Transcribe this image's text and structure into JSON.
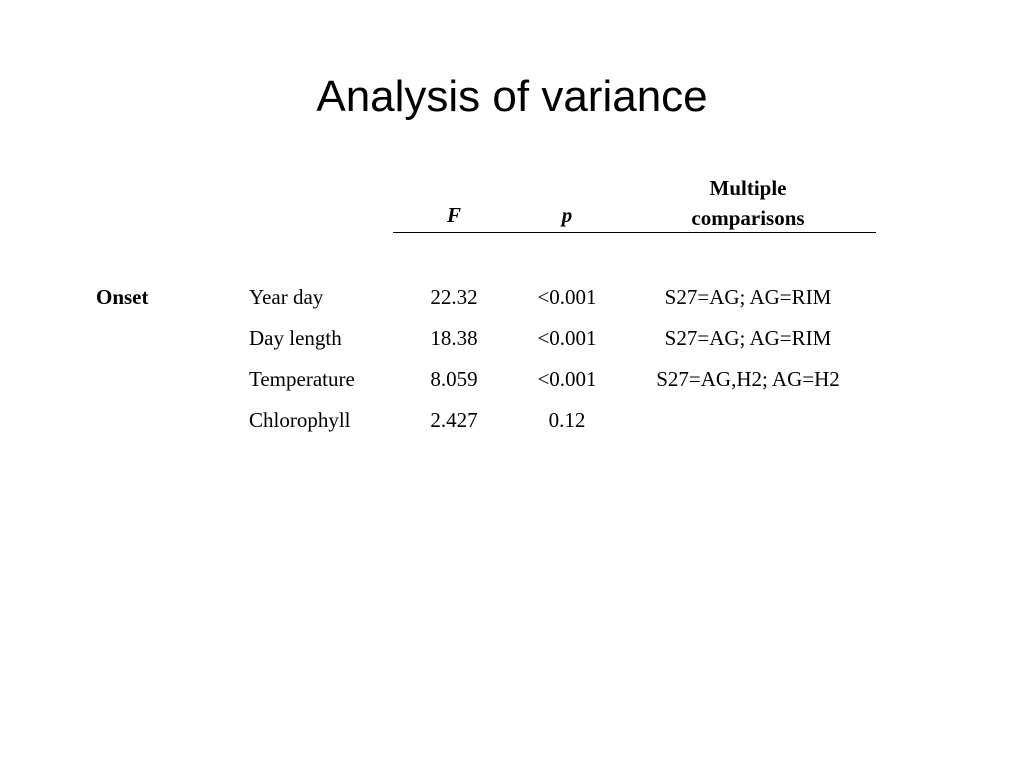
{
  "title": "Analysis of variance",
  "table": {
    "header": {
      "F": "F",
      "p": "p",
      "comparisons": "Multiple comparisons"
    },
    "group": "Onset",
    "rows": [
      {
        "variable": "Year day",
        "F": "22.32",
        "p": "<0.001",
        "comparisons": "S27=AG; AG=RIM"
      },
      {
        "variable": "Day length",
        "F": "18.38",
        "p": "<0.001",
        "comparisons": "S27=AG; AG=RIM"
      },
      {
        "variable": "Temperature",
        "F": "8.059",
        "p": "<0.001",
        "comparisons": "S27=AG,H2; AG=H2"
      },
      {
        "variable": "Chlorophyll",
        "F": "2.427",
        "p": "0.12"
      }
    ]
  }
}
